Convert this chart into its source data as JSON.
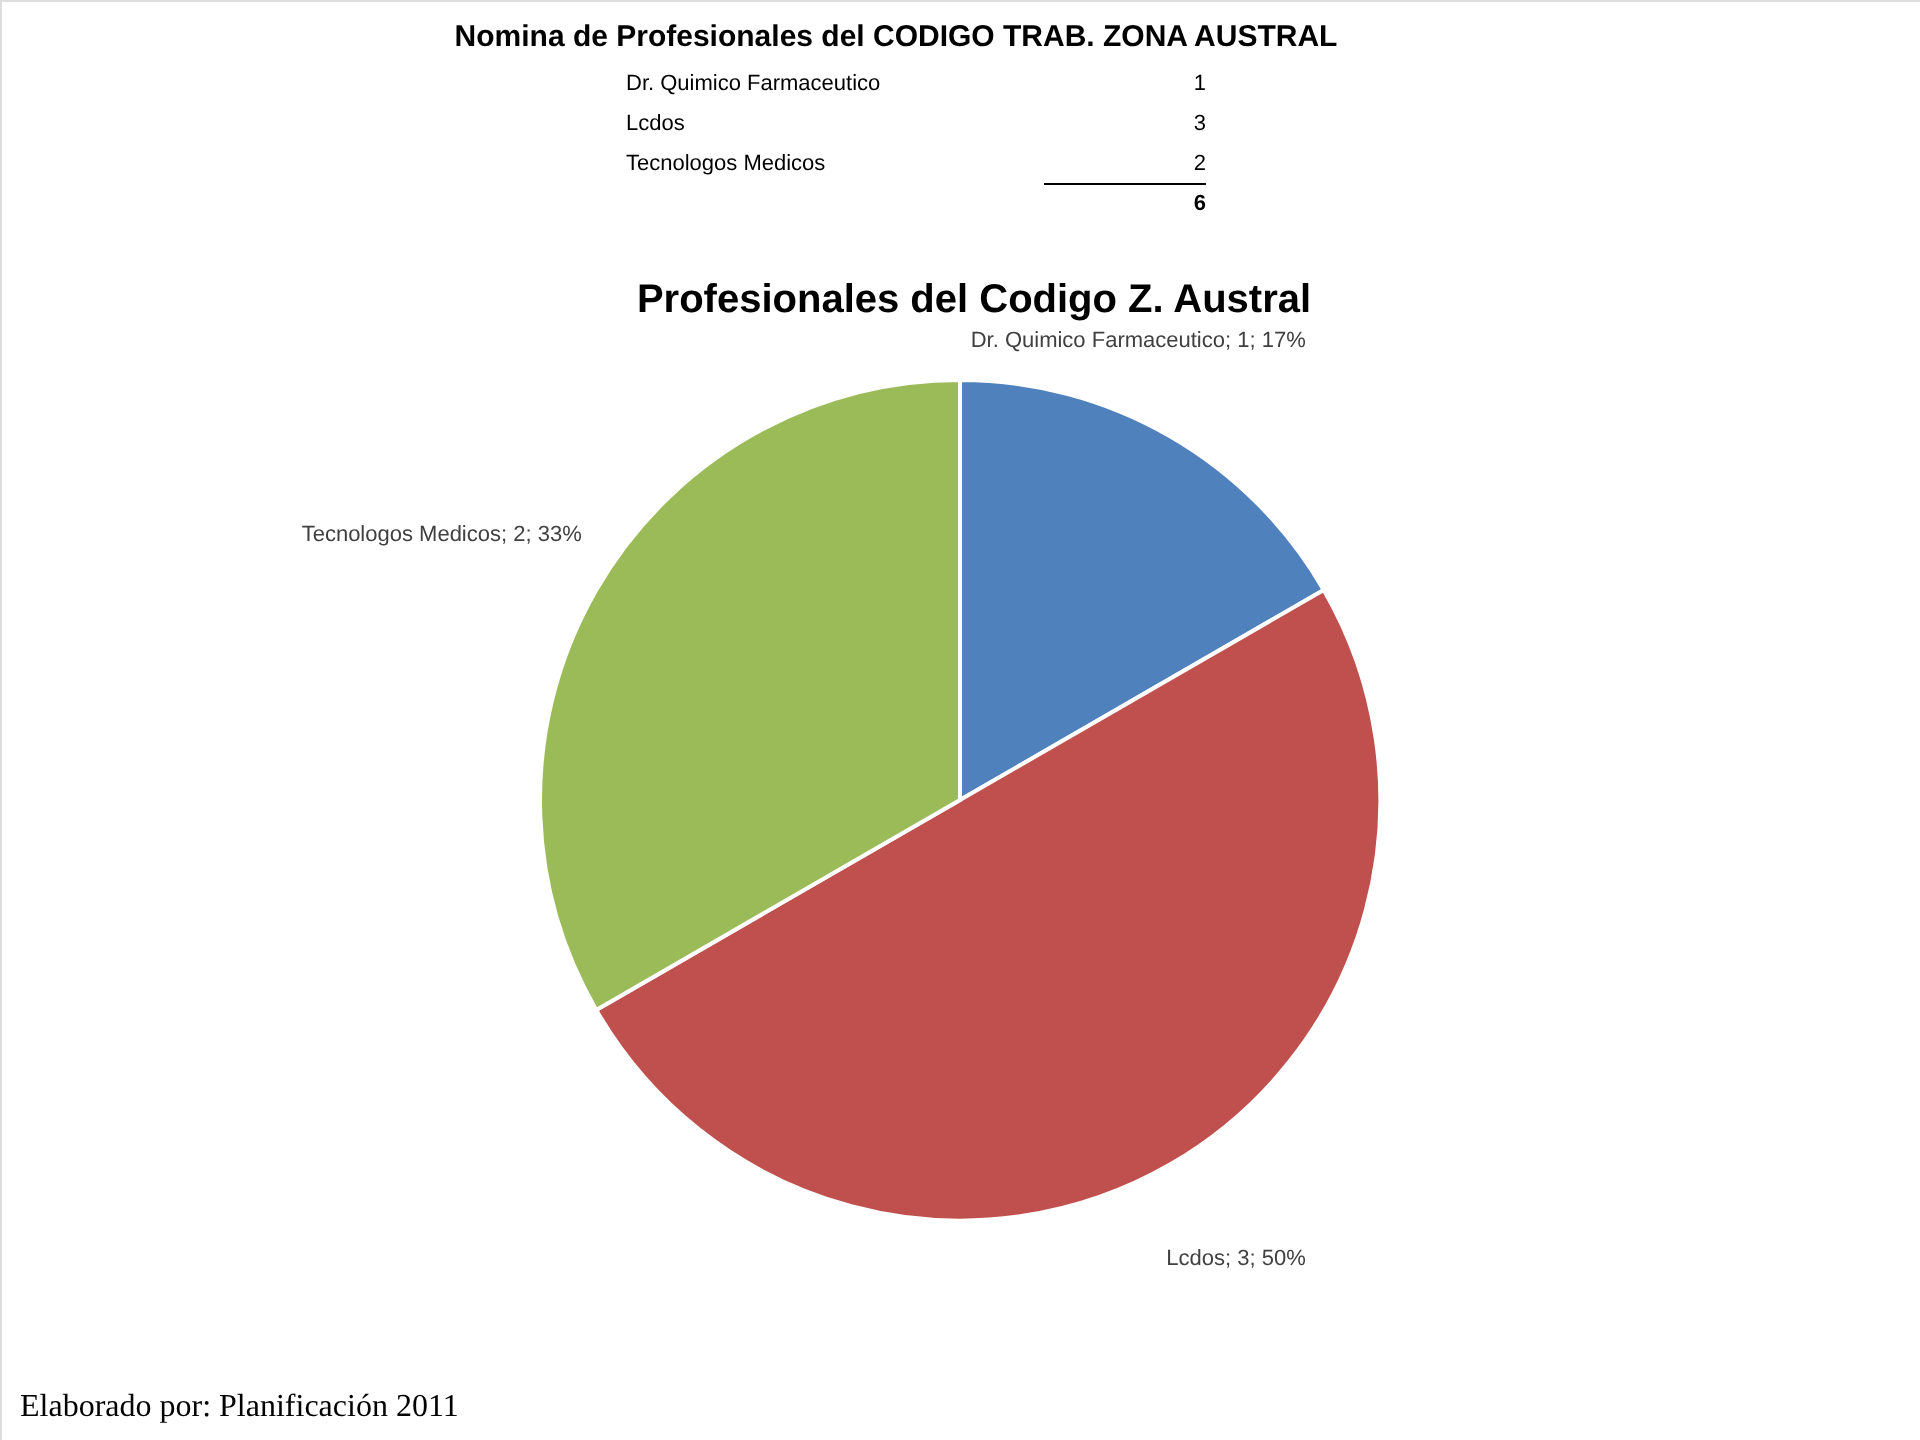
{
  "chart_data": {
    "type": "pie",
    "title": "Profesionales del Codigo Z. Austral",
    "categories": [
      "Dr. Quimico Farmaceutico",
      "Lcdos",
      "Tecnologos Medicos"
    ],
    "values": [
      1,
      3,
      2
    ],
    "colors": [
      "#4f81bd",
      "#c0504d",
      "#9bbb59"
    ],
    "value_labels": [
      "; 1; 17%",
      "; 3; 50%",
      "; 2; 33%"
    ],
    "annotations": [
      "Nomina de Profesionales del CODIGO TRAB. ZONA AUSTRAL",
      "Dr. Quimico Farmaceutico",
      "1",
      "Lcdos",
      "3",
      "Tecnologos Medicos",
      "2",
      "6",
      "Elaborado por: Planificación 2011"
    ]
  }
}
